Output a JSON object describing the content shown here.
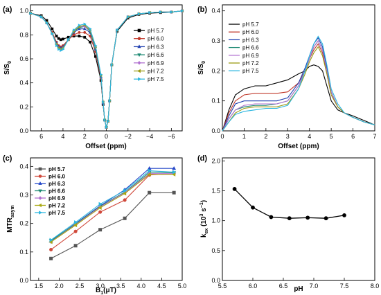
{
  "chart_data": [
    {
      "panel": "(a)",
      "type": "line",
      "xlabel": "Offset (ppm)",
      "ylabel": "S/S",
      "ylabel_sub": "0",
      "xlim": [
        7,
        -7
      ],
      "ylim": [
        0,
        1.05
      ],
      "xticks": [
        6,
        4,
        2,
        0,
        -2,
        -4,
        -6
      ],
      "xtick_labels": [
        "6",
        "4",
        "2",
        "0",
        "−2",
        "−4",
        "−6"
      ],
      "yticks": [
        0,
        0.2,
        0.4,
        0.6,
        0.8,
        1.0
      ],
      "ytick_labels": [
        "0.0",
        "0.2",
        "0.4",
        "0.6",
        "0.8",
        "1.0"
      ],
      "legend_position": "right",
      "series": [
        {
          "name": "pH 5.7",
          "color": "#000000",
          "marker": "square",
          "x": [
            7,
            6,
            5.5,
            5,
            4.6,
            4.4,
            4.2,
            4,
            3.5,
            3,
            2.5,
            2,
            1.5,
            1,
            0.5,
            0.3,
            0.15,
            0,
            -0.15,
            -0.3,
            -0.5,
            -1,
            -2,
            -3,
            -4,
            -5,
            -6,
            -7
          ],
          "y": [
            0.98,
            0.96,
            0.92,
            0.85,
            0.79,
            0.77,
            0.76,
            0.765,
            0.78,
            0.79,
            0.79,
            0.78,
            0.74,
            0.62,
            0.42,
            0.22,
            0.09,
            0.03,
            0.08,
            0.25,
            0.55,
            0.83,
            0.94,
            0.97,
            0.98,
            0.985,
            0.99,
            1.0
          ]
        },
        {
          "name": "pH 6.0",
          "color": "#c0392b",
          "marker": "circle",
          "x": [
            7,
            6,
            5.5,
            5,
            4.6,
            4.4,
            4.2,
            4,
            3.5,
            3,
            2.5,
            2,
            1.5,
            1,
            0.5,
            0.3,
            0.15,
            0,
            -0.15,
            -0.3,
            -0.5,
            -1,
            -2,
            -3,
            -4,
            -5,
            -6,
            -7
          ],
          "y": [
            0.98,
            0.95,
            0.9,
            0.82,
            0.74,
            0.71,
            0.7,
            0.71,
            0.76,
            0.8,
            0.82,
            0.82,
            0.79,
            0.66,
            0.44,
            0.23,
            0.09,
            0.03,
            0.08,
            0.25,
            0.55,
            0.84,
            0.95,
            0.975,
            0.985,
            0.99,
            0.99,
            1.0
          ]
        },
        {
          "name": "pH 6.3",
          "color": "#1f3fb0",
          "marker": "triangle",
          "x": [
            7,
            6,
            5.5,
            5,
            4.6,
            4.4,
            4.2,
            4,
            3.5,
            3,
            2.5,
            2,
            1.5,
            1,
            0.5,
            0.3,
            0.15,
            0,
            -0.15,
            -0.3,
            -0.5,
            -1,
            -2,
            -3,
            -4,
            -5,
            -6,
            -7
          ],
          "y": [
            0.98,
            0.95,
            0.9,
            0.81,
            0.73,
            0.7,
            0.69,
            0.7,
            0.76,
            0.82,
            0.85,
            0.85,
            0.82,
            0.68,
            0.45,
            0.23,
            0.09,
            0.03,
            0.08,
            0.25,
            0.55,
            0.84,
            0.95,
            0.975,
            0.985,
            0.99,
            0.99,
            1.0
          ]
        },
        {
          "name": "pH 6.6",
          "color": "#1e8a74",
          "marker": "triangle-down",
          "x": [
            7,
            6,
            5.5,
            5,
            4.6,
            4.4,
            4.2,
            4,
            3.5,
            3,
            2.5,
            2,
            1.5,
            1,
            0.5,
            0.3,
            0.15,
            0,
            -0.15,
            -0.3,
            -0.5,
            -1,
            -2,
            -3,
            -4,
            -5,
            -6,
            -7
          ],
          "y": [
            0.98,
            0.95,
            0.9,
            0.81,
            0.72,
            0.69,
            0.68,
            0.69,
            0.76,
            0.83,
            0.86,
            0.87,
            0.83,
            0.69,
            0.46,
            0.24,
            0.09,
            0.03,
            0.08,
            0.25,
            0.55,
            0.84,
            0.95,
            0.975,
            0.985,
            0.99,
            0.99,
            1.0
          ]
        },
        {
          "name": "pH 6.9",
          "color": "#b070d0",
          "marker": "diamond",
          "x": [
            7,
            6,
            5.5,
            5,
            4.6,
            4.4,
            4.2,
            4,
            3.5,
            3,
            2.5,
            2,
            1.5,
            1,
            0.5,
            0.3,
            0.15,
            0,
            -0.15,
            -0.3,
            -0.5,
            -1,
            -2,
            -3,
            -4,
            -5,
            -6,
            -7
          ],
          "y": [
            0.98,
            0.95,
            0.9,
            0.81,
            0.72,
            0.69,
            0.68,
            0.69,
            0.76,
            0.83,
            0.87,
            0.87,
            0.84,
            0.7,
            0.46,
            0.24,
            0.09,
            0.03,
            0.08,
            0.25,
            0.55,
            0.84,
            0.95,
            0.975,
            0.985,
            0.99,
            0.99,
            1.0
          ]
        },
        {
          "name": "pH 7.2",
          "color": "#9a9a12",
          "marker": "triangle-left",
          "x": [
            7,
            6,
            5.5,
            5,
            4.6,
            4.4,
            4.2,
            4,
            3.5,
            3,
            2.5,
            2,
            1.5,
            1,
            0.5,
            0.3,
            0.15,
            0,
            -0.15,
            -0.3,
            -0.5,
            -1,
            -2,
            -3,
            -4,
            -5,
            -6,
            -7
          ],
          "y": [
            0.98,
            0.95,
            0.9,
            0.81,
            0.72,
            0.69,
            0.68,
            0.69,
            0.76,
            0.83,
            0.87,
            0.88,
            0.84,
            0.7,
            0.46,
            0.24,
            0.09,
            0.03,
            0.08,
            0.25,
            0.55,
            0.84,
            0.95,
            0.975,
            0.985,
            0.99,
            0.99,
            1.0
          ]
        },
        {
          "name": "pH 7.5",
          "color": "#2bb6e0",
          "marker": "triangle-right",
          "x": [
            7,
            6,
            5.5,
            5,
            4.6,
            4.4,
            4.2,
            4,
            3.5,
            3,
            2.5,
            2,
            1.5,
            1,
            0.5,
            0.3,
            0.15,
            0,
            -0.15,
            -0.3,
            -0.5,
            -1,
            -2,
            -3,
            -4,
            -5,
            -6,
            -7
          ],
          "y": [
            0.98,
            0.95,
            0.9,
            0.81,
            0.71,
            0.68,
            0.67,
            0.68,
            0.76,
            0.84,
            0.88,
            0.89,
            0.85,
            0.71,
            0.47,
            0.24,
            0.09,
            0.03,
            0.08,
            0.25,
            0.55,
            0.84,
            0.95,
            0.975,
            0.985,
            0.99,
            0.99,
            1.0
          ]
        }
      ]
    },
    {
      "panel": "(b)",
      "type": "line",
      "xlabel": "Offset (ppm)",
      "ylabel": "S/S",
      "ylabel_sub": "0",
      "xlim": [
        0,
        7
      ],
      "ylim": [
        0,
        0.42
      ],
      "xticks": [
        0,
        1,
        2,
        3,
        4,
        5,
        6,
        7
      ],
      "xtick_labels": [
        "0",
        "1",
        "2",
        "3",
        "4",
        "5",
        "6",
        "7"
      ],
      "yticks": [
        0,
        0.1,
        0.2,
        0.3,
        0.4
      ],
      "ytick_labels": [
        "0.0",
        "0.1",
        "0.2",
        "0.3",
        "0.4"
      ],
      "legend_position": "top-left",
      "series": [
        {
          "name": "pH 5.7",
          "color": "#000000",
          "x": [
            0,
            0.3,
            0.6,
            1,
            1.5,
            2,
            2.5,
            3,
            3.5,
            3.8,
            4,
            4.2,
            4.4,
            4.6,
            4.8,
            5,
            5.3,
            5.6,
            6,
            6.5,
            7
          ],
          "y": [
            0,
            0.07,
            0.12,
            0.14,
            0.15,
            0.15,
            0.16,
            0.17,
            0.19,
            0.2,
            0.215,
            0.22,
            0.215,
            0.2,
            0.15,
            0.1,
            0.07,
            0.06,
            0.05,
            0.035,
            0.02
          ]
        },
        {
          "name": "pH 6.0",
          "color": "#c0392b",
          "x": [
            0,
            0.3,
            0.6,
            1,
            1.5,
            2,
            2.5,
            3,
            3.5,
            3.8,
            4,
            4.2,
            4.4,
            4.6,
            4.8,
            5,
            5.3,
            5.6,
            6,
            6.5,
            7
          ],
          "y": [
            0,
            0.06,
            0.1,
            0.12,
            0.125,
            0.125,
            0.125,
            0.13,
            0.16,
            0.2,
            0.24,
            0.27,
            0.29,
            0.26,
            0.19,
            0.12,
            0.08,
            0.06,
            0.045,
            0.03,
            0.02
          ]
        },
        {
          "name": "pH 6.3",
          "color": "#1f3fb0",
          "x": [
            0,
            0.3,
            0.6,
            1,
            1.5,
            2,
            2.5,
            3,
            3.5,
            3.8,
            4,
            4.2,
            4.4,
            4.6,
            4.8,
            5,
            5.3,
            5.6,
            6,
            6.5,
            7
          ],
          "y": [
            0,
            0.05,
            0.09,
            0.1,
            0.1,
            0.1,
            0.1,
            0.11,
            0.16,
            0.21,
            0.25,
            0.29,
            0.31,
            0.28,
            0.21,
            0.13,
            0.08,
            0.06,
            0.045,
            0.03,
            0.02
          ]
        },
        {
          "name": "pH 6.6",
          "color": "#1e8a74",
          "x": [
            0,
            0.3,
            0.6,
            1,
            1.5,
            2,
            2.5,
            3,
            3.5,
            3.8,
            4,
            4.2,
            4.4,
            4.6,
            4.8,
            5,
            5.3,
            5.6,
            6,
            6.5,
            7
          ],
          "y": [
            0,
            0.04,
            0.07,
            0.08,
            0.085,
            0.085,
            0.09,
            0.1,
            0.15,
            0.2,
            0.24,
            0.28,
            0.3,
            0.27,
            0.2,
            0.13,
            0.08,
            0.06,
            0.045,
            0.03,
            0.02
          ]
        },
        {
          "name": "pH 6.9",
          "color": "#b070d0",
          "x": [
            0,
            0.3,
            0.6,
            1,
            1.5,
            2,
            2.5,
            3,
            3.5,
            3.8,
            4,
            4.2,
            4.4,
            4.6,
            4.8,
            5,
            5.3,
            5.6,
            6,
            6.5,
            7
          ],
          "y": [
            0,
            0.04,
            0.07,
            0.085,
            0.09,
            0.09,
            0.09,
            0.1,
            0.15,
            0.2,
            0.24,
            0.28,
            0.3,
            0.27,
            0.2,
            0.13,
            0.08,
            0.06,
            0.045,
            0.03,
            0.02
          ]
        },
        {
          "name": "pH 7.2",
          "color": "#9a9a12",
          "x": [
            0,
            0.3,
            0.6,
            1,
            1.5,
            2,
            2.5,
            3,
            3.5,
            3.8,
            4,
            4.2,
            4.4,
            4.6,
            4.8,
            5,
            5.3,
            5.6,
            6,
            6.5,
            7
          ],
          "y": [
            0,
            0.03,
            0.06,
            0.075,
            0.08,
            0.08,
            0.08,
            0.09,
            0.14,
            0.19,
            0.23,
            0.26,
            0.28,
            0.25,
            0.19,
            0.12,
            0.08,
            0.06,
            0.045,
            0.03,
            0.02
          ]
        },
        {
          "name": "pH 7.5",
          "color": "#2bb6e0",
          "x": [
            0,
            0.3,
            0.6,
            1,
            1.5,
            2,
            2.5,
            3,
            3.5,
            3.8,
            4,
            4.2,
            4.4,
            4.6,
            4.8,
            5,
            5.3,
            5.6,
            6,
            6.5,
            7
          ],
          "y": [
            0,
            0.03,
            0.055,
            0.065,
            0.07,
            0.075,
            0.075,
            0.085,
            0.14,
            0.2,
            0.25,
            0.29,
            0.315,
            0.29,
            0.22,
            0.14,
            0.09,
            0.06,
            0.045,
            0.03,
            0.02
          ]
        }
      ]
    },
    {
      "panel": "(c)",
      "type": "line",
      "xlabel": "B",
      "xlabel_sub": "1",
      "xlabel_tail": "(μT)",
      "ylabel": "MTR",
      "ylabel_sub": "asym",
      "xlim": [
        1.3,
        5.0
      ],
      "ylim": [
        0,
        0.43
      ],
      "xticks": [
        1.5,
        2.0,
        2.5,
        3.0,
        3.5,
        4.0,
        4.5,
        5.0
      ],
      "xtick_labels": [
        "1.5",
        "2.0",
        "2.5",
        "3.0",
        "3.5",
        "4.0",
        "4.5",
        "5.0"
      ],
      "yticks": [
        0,
        0.1,
        0.2,
        0.3,
        0.4
      ],
      "ytick_labels": [
        "0.0",
        "0.1",
        "0.2",
        "0.3",
        "0.4"
      ],
      "legend_position": "top-left",
      "x": [
        1.8,
        2.4,
        3.0,
        3.6,
        4.2,
        4.8
      ],
      "series": [
        {
          "name": "pH 5.7",
          "color": "#555555",
          "marker": "square",
          "values": [
            0.077,
            0.122,
            0.178,
            0.218,
            0.308,
            0.308
          ]
        },
        {
          "name": "pH 6.0",
          "color": "#d0483a",
          "marker": "circle",
          "values": [
            0.108,
            0.172,
            0.24,
            0.282,
            0.37,
            0.375
          ]
        },
        {
          "name": "pH 6.3",
          "color": "#2447c8",
          "marker": "triangle",
          "values": [
            0.138,
            0.2,
            0.262,
            0.318,
            0.393,
            0.393
          ]
        },
        {
          "name": "pH 6.6",
          "color": "#1e8a74",
          "marker": "triangle-down",
          "values": [
            0.14,
            0.198,
            0.26,
            0.31,
            0.38,
            0.378
          ]
        },
        {
          "name": "pH 6.9",
          "color": "#b070d0",
          "marker": "diamond",
          "values": [
            0.136,
            0.196,
            0.258,
            0.308,
            0.375,
            0.375
          ]
        },
        {
          "name": "pH 7.2",
          "color": "#a8a810",
          "marker": "triangle-left",
          "values": [
            0.135,
            0.194,
            0.255,
            0.305,
            0.372,
            0.372
          ]
        },
        {
          "name": "pH 7.5",
          "color": "#2bb6e0",
          "marker": "triangle-right",
          "values": [
            0.142,
            0.204,
            0.268,
            0.315,
            0.385,
            0.38
          ]
        }
      ]
    },
    {
      "panel": "(d)",
      "type": "line",
      "xlabel": "pH",
      "ylabel": "k",
      "ylabel_sub": "ex",
      "ylabel_tail": " (10",
      "ylabel_sup": "3",
      "ylabel_tail2": " s",
      "ylabel_sup2": "−1",
      "ylabel_end": ")",
      "xlim": [
        5.5,
        8.0
      ],
      "ylim": [
        0,
        2.05
      ],
      "xticks": [
        5.5,
        6.0,
        6.5,
        7.0,
        7.5,
        8.0
      ],
      "xtick_labels": [
        "5.5",
        "6.0",
        "6.5",
        "7.0",
        "7.5",
        "8.0"
      ],
      "yticks": [
        0,
        0.5,
        1.0,
        1.5,
        2.0
      ],
      "ytick_labels": [
        "0.0",
        "0.5",
        "1.0",
        "1.5",
        "2.0"
      ],
      "x": [
        5.7,
        6.0,
        6.3,
        6.6,
        6.9,
        7.2,
        7.5
      ],
      "series": [
        {
          "color": "#000000",
          "marker": "circle",
          "values": [
            1.53,
            1.22,
            1.06,
            1.04,
            1.05,
            1.04,
            1.09
          ]
        }
      ]
    }
  ]
}
